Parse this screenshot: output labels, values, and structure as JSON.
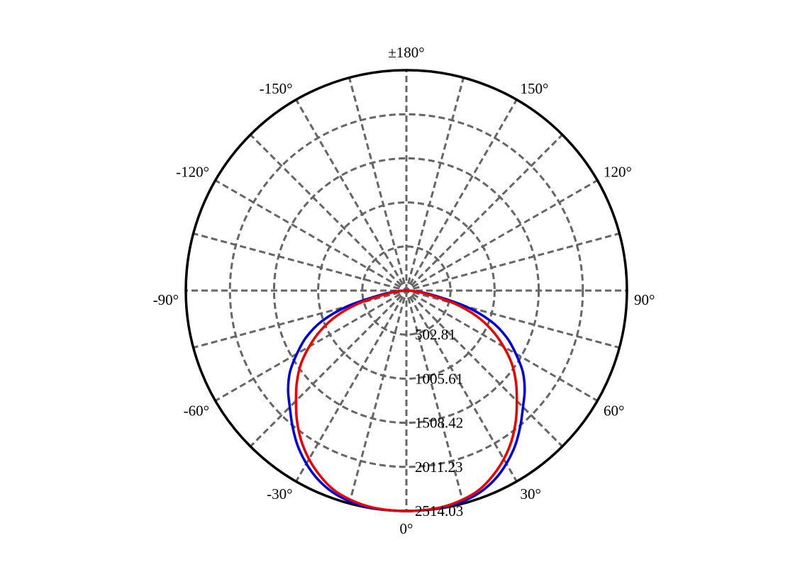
{
  "chart_data": {
    "type": "polar",
    "radial_max": 2514.03,
    "radial_ticks": [
      502.81,
      1005.61,
      1508.42,
      2011.23,
      2514.03
    ],
    "radial_tick_labels": [
      "502.81",
      "1005.61",
      "1508.42",
      "2011.23",
      "2514.03"
    ],
    "angle_labels": [
      {
        "angle": 0,
        "text": "0°"
      },
      {
        "angle": 30,
        "text": "30°"
      },
      {
        "angle": 60,
        "text": "60°"
      },
      {
        "angle": 90,
        "text": "90°"
      },
      {
        "angle": 120,
        "text": "120°"
      },
      {
        "angle": 150,
        "text": "150°"
      },
      {
        "angle": 180,
        "text": "±180°"
      },
      {
        "angle": -150,
        "text": "-150°"
      },
      {
        "angle": -120,
        "text": "-120°"
      },
      {
        "angle": -90,
        "text": "-90°"
      },
      {
        "angle": -60,
        "text": "-60°"
      },
      {
        "angle": -30,
        "text": "-30°"
      }
    ],
    "grid": true,
    "spoke_step_degrees": 15,
    "series": [
      {
        "color": "#0000dd",
        "angles": [
          -90,
          -85,
          -80,
          -75,
          -70,
          -65,
          -60,
          -55,
          -50,
          -45,
          -40,
          -35,
          -30,
          -25,
          -20,
          -15,
          -10,
          -5,
          0,
          5,
          10,
          15,
          20,
          25,
          30,
          35,
          40,
          45,
          50,
          55,
          60,
          65,
          70,
          75,
          80,
          85,
          90
        ],
        "values": [
          0,
          120,
          320,
          700,
          1030,
          1260,
          1440,
          1620,
          1760,
          1880,
          2020,
          2160,
          2280,
          2380,
          2450,
          2490,
          2510,
          2514,
          2514,
          2514,
          2510,
          2490,
          2450,
          2380,
          2280,
          2160,
          2020,
          1880,
          1760,
          1620,
          1440,
          1260,
          1030,
          700,
          320,
          120,
          0
        ]
      },
      {
        "color": "#ee0000",
        "angles": [
          -90,
          -85,
          -80,
          -75,
          -70,
          -65,
          -60,
          -55,
          -50,
          -45,
          -40,
          -35,
          -30,
          -25,
          -20,
          -15,
          -10,
          -5,
          0,
          5,
          10,
          15,
          20,
          25,
          30,
          35,
          40,
          45,
          50,
          55,
          60,
          65,
          70,
          75,
          80,
          85,
          90
        ],
        "values": [
          0,
          90,
          250,
          560,
          850,
          1080,
          1280,
          1470,
          1630,
          1780,
          1940,
          2090,
          2220,
          2330,
          2420,
          2470,
          2500,
          2512,
          2514,
          2512,
          2500,
          2470,
          2420,
          2330,
          2220,
          2090,
          1940,
          1780,
          1630,
          1470,
          1280,
          1080,
          850,
          560,
          250,
          90,
          0
        ]
      }
    ]
  }
}
